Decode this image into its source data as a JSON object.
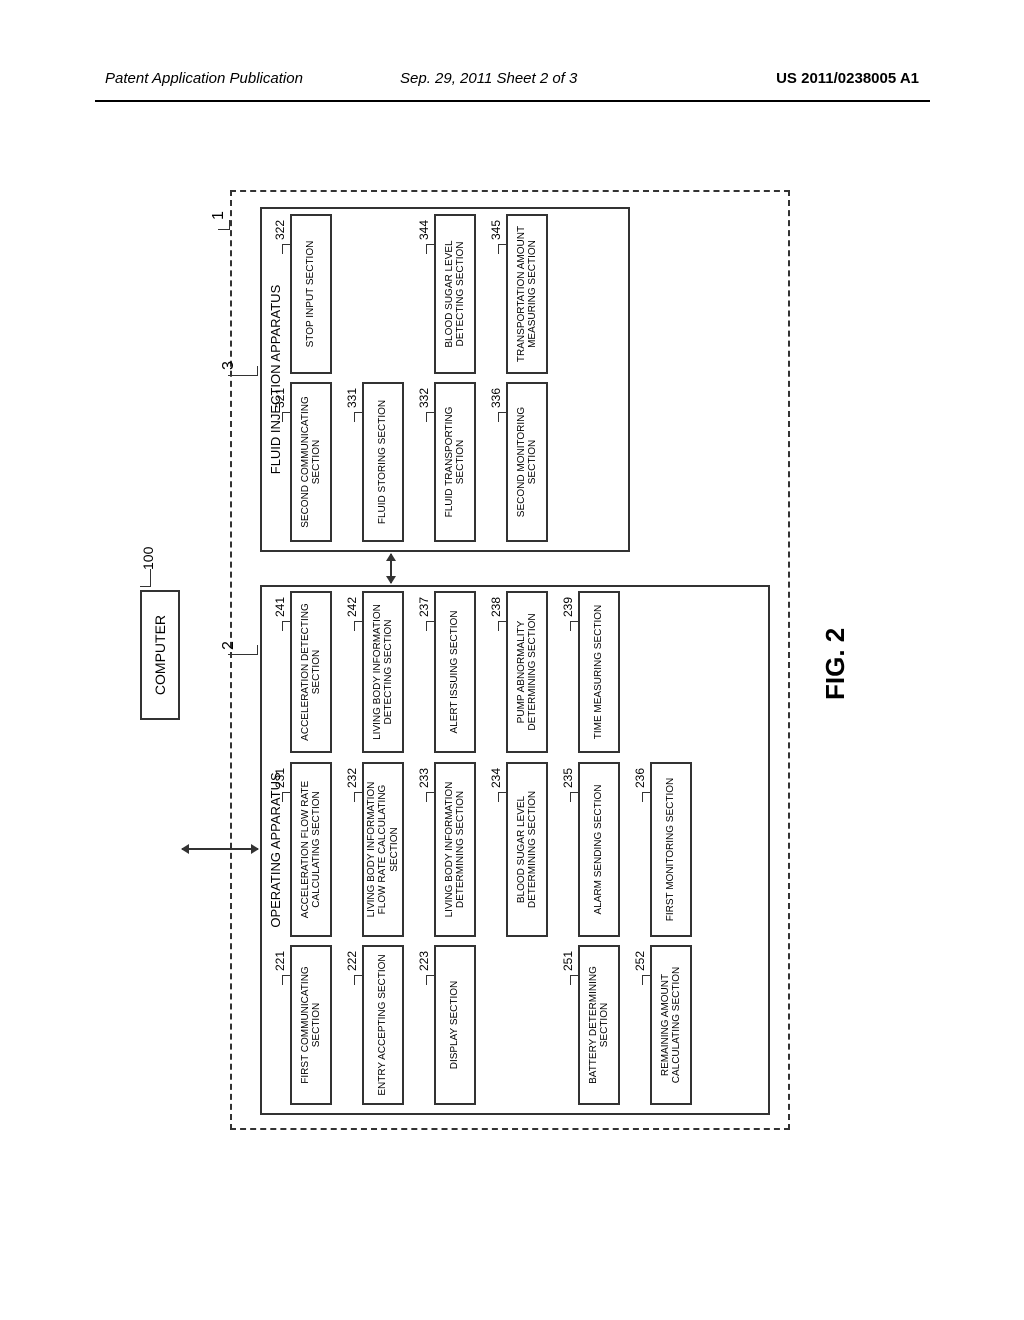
{
  "header": {
    "left": "Patent Application Publication",
    "mid": "Sep. 29, 2011  Sheet 2 of 3",
    "pub": "US 2011/0238005 A1"
  },
  "computer": {
    "label": "COMPUTER",
    "ref": "100"
  },
  "system_ref": "1",
  "operating": {
    "ref": "2",
    "title": "OPERATING APPARATUS",
    "col1": [
      {
        "num": "221",
        "label": "FIRST COMMUNICATING SECTION"
      },
      {
        "num": "222",
        "label": "ENTRY ACCEPTING SECTION"
      },
      {
        "num": "223",
        "label": "DISPLAY SECTION"
      },
      {
        "gap": true
      },
      {
        "num": "251",
        "label": "BATTERY DETERMINING SECTION"
      },
      {
        "num": "252",
        "label": "REMAINING AMOUNT CALCULATING SECTION"
      }
    ],
    "col2": [
      {
        "num": "231",
        "label": "ACCELERATION FLOW RATE CALCULATING SECTION"
      },
      {
        "num": "232",
        "label": "LIVING BODY INFORMATION FLOW RATE CALCULATING SECTION"
      },
      {
        "num": "233",
        "label": "LIVING BODY INFORMATION DETERMINING SECTION"
      },
      {
        "num": "234",
        "label": "BLOOD SUGAR LEVEL DETERMINING SECTION"
      },
      {
        "num": "235",
        "label": "ALARM SENDING SECTION"
      },
      {
        "num": "236",
        "label": "FIRST MONITORING SECTION"
      }
    ],
    "col3": [
      {
        "num": "241",
        "label": "ACCELERATION DETECTING SECTION"
      },
      {
        "num": "242",
        "label": "LIVING BODY INFORMATION DETECTING SECTION"
      },
      {
        "num": "237",
        "label": "ALERT ISSUING SECTION"
      },
      {
        "num": "238",
        "label": "PUMP ABNORMALITY DETERMINING SECTION"
      },
      {
        "num": "239",
        "label": "TIME MEASURING SECTION"
      }
    ]
  },
  "fluid": {
    "ref": "3",
    "title": "FLUID INJECTION APPARATUS",
    "col1": [
      {
        "num": "321",
        "label": "SECOND COMMUNICATING SECTION"
      },
      {
        "num": "331",
        "label": "FLUID STORING SECTION"
      },
      {
        "num": "332",
        "label": "FLUID TRANSPORTING SECTION"
      },
      {
        "num": "336",
        "label": "SECOND MONITORING SECTION"
      }
    ],
    "col2": [
      {
        "num": "322",
        "label": "STOP INPUT SECTION"
      },
      {
        "gap": true
      },
      {
        "num": "344",
        "label": "BLOOD SUGAR LEVEL DETECTING SECTION"
      },
      {
        "num": "345",
        "label": "TRANSPORTATION AMOUNT MEASURING SECTION"
      }
    ]
  },
  "figure_label": "FIG. 2",
  "colors": {
    "stroke": "#333333",
    "bg": "#ffffff"
  }
}
